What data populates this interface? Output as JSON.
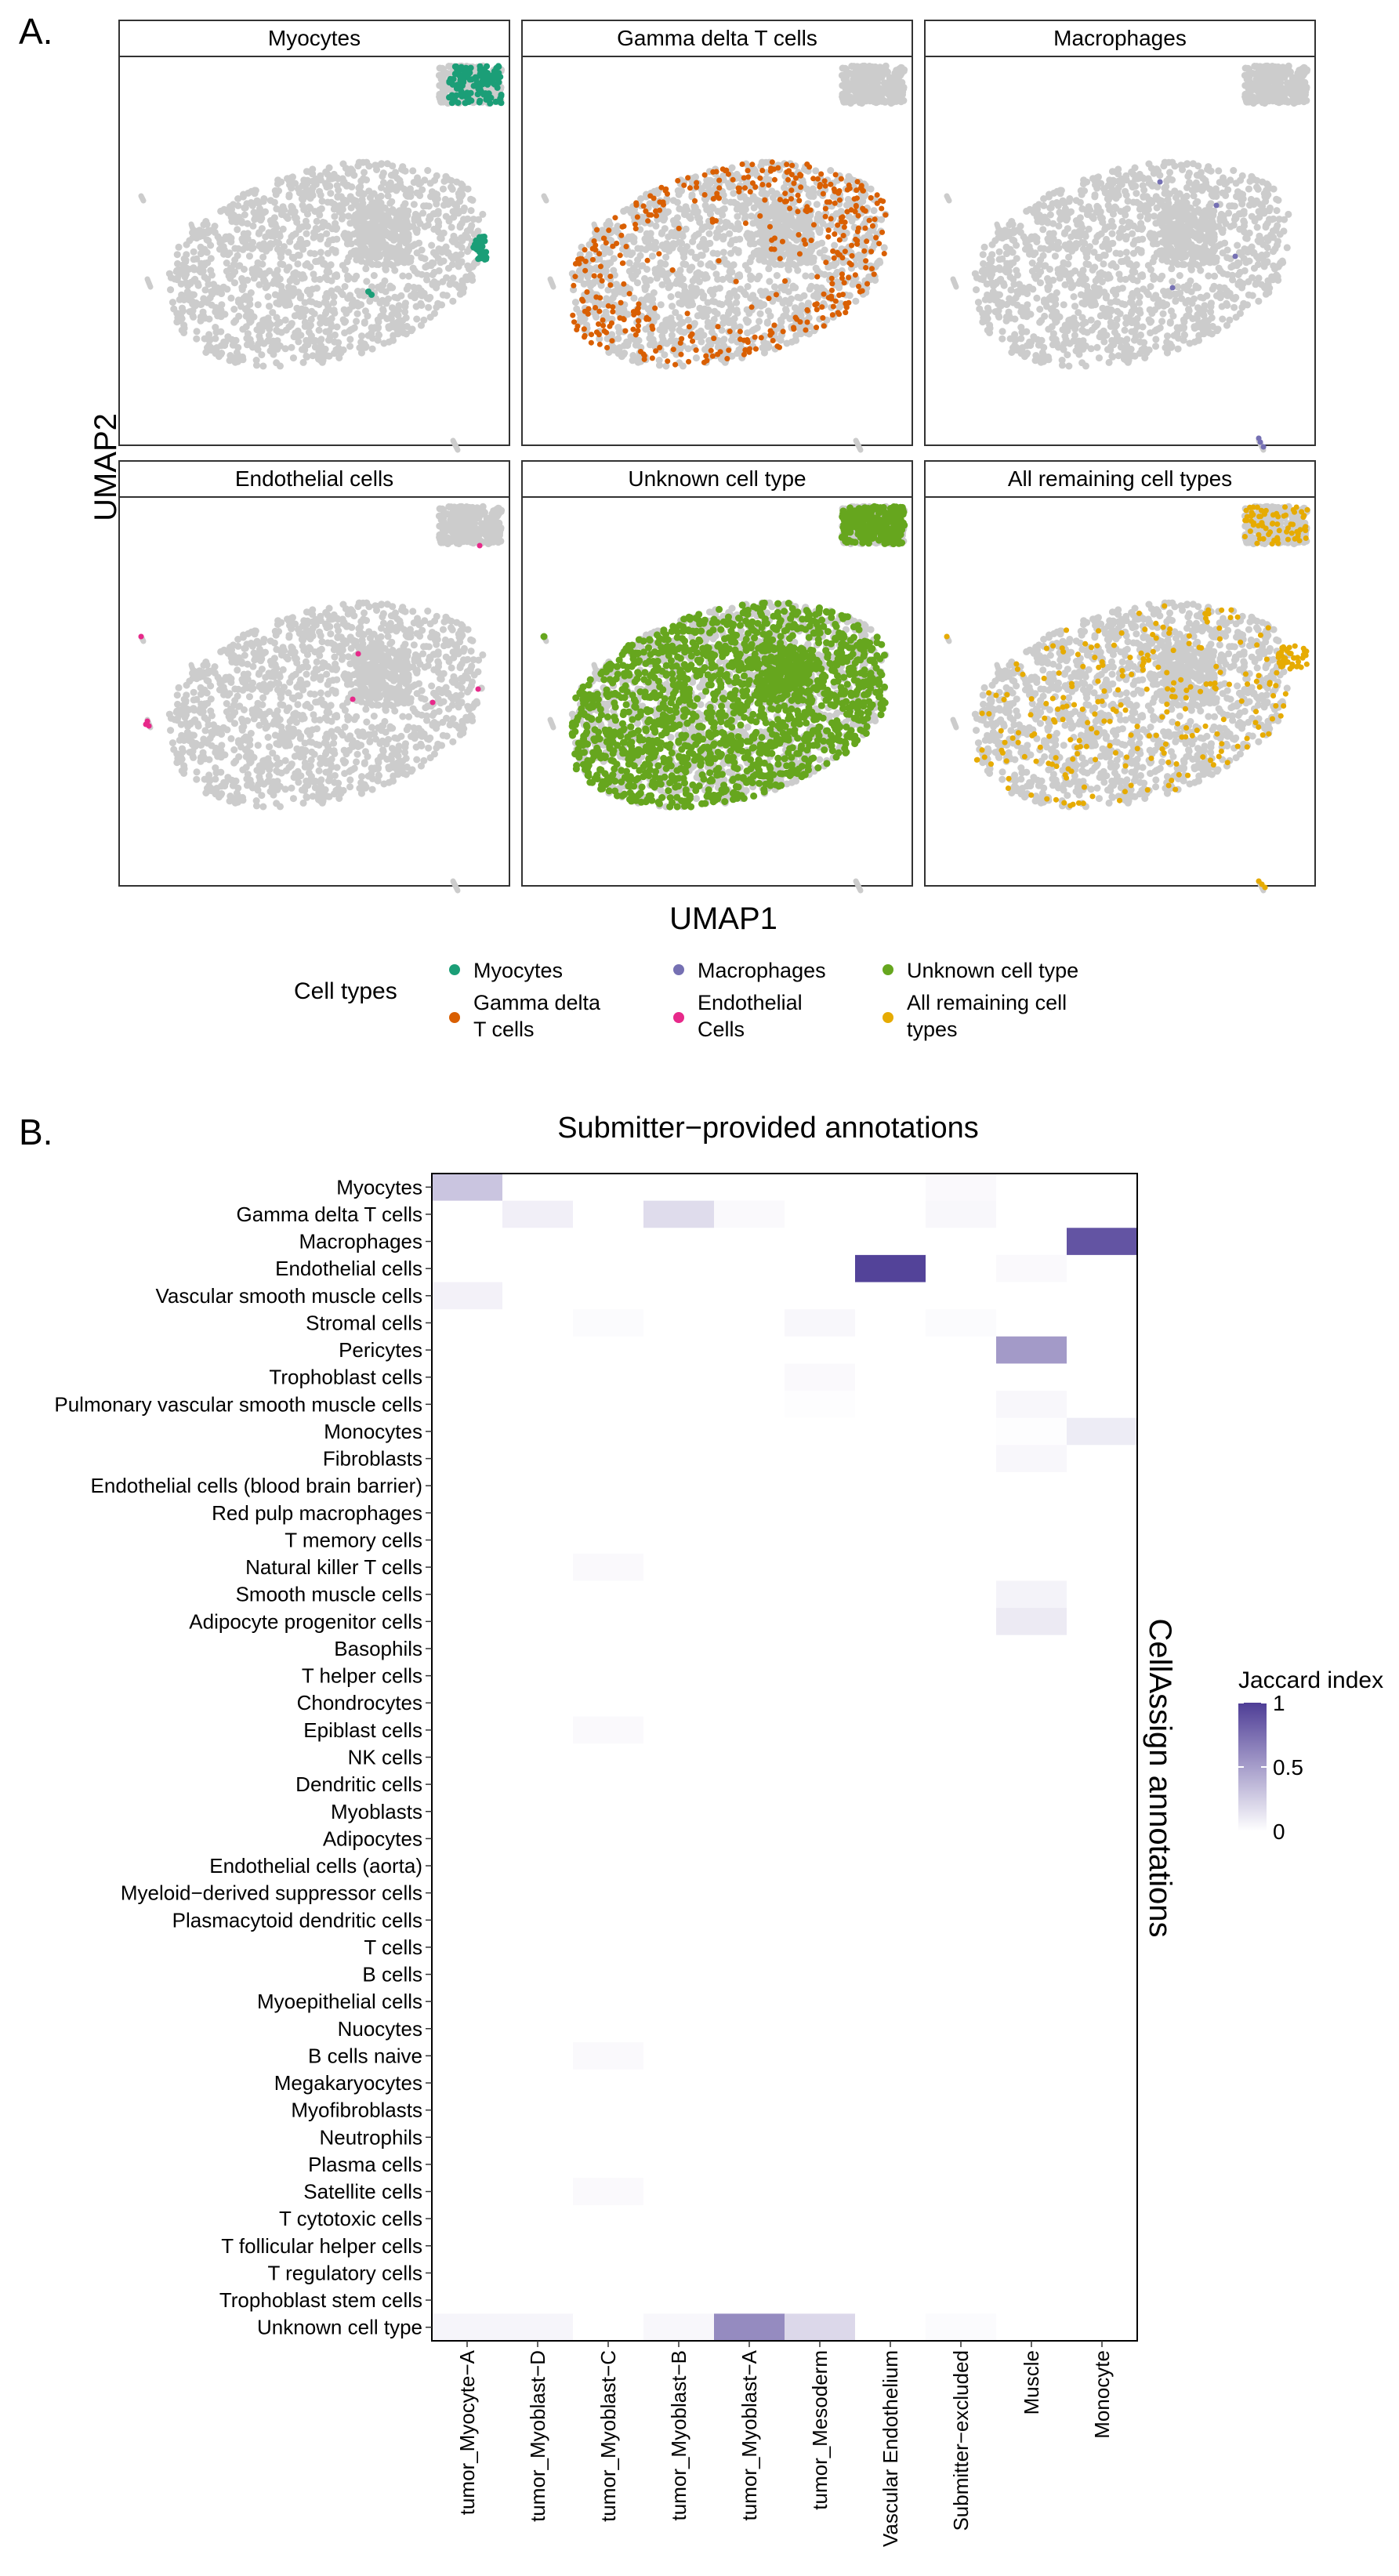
{
  "panel_a": {
    "label": "A.",
    "xlabel": "UMAP1",
    "ylabel": "UMAP2",
    "facets": [
      {
        "title": "Myocytes",
        "color": "#1b9e77",
        "highlight": "myocytes"
      },
      {
        "title": "Gamma delta T cells",
        "color": "#d95f02",
        "highlight": "gamma"
      },
      {
        "title": "Macrophages",
        "color": "#7570b3",
        "highlight": "macro"
      },
      {
        "title": "Endothelial cells",
        "color": "#e7298a",
        "highlight": "endo"
      },
      {
        "title": "Unknown cell type",
        "color": "#66a61e",
        "highlight": "unknown"
      },
      {
        "title": "All remaining cell types",
        "color": "#e6ab02",
        "highlight": "remaining"
      }
    ],
    "legend": {
      "title": "Cell types",
      "items": [
        {
          "label": "Myocytes",
          "color": "#1b9e77"
        },
        {
          "label": "Macrophages",
          "color": "#7570b3"
        },
        {
          "label": "Unknown cell type",
          "color": "#66a61e"
        },
        {
          "label": "Gamma delta T cells",
          "line1": "Gamma delta",
          "line2": "T cells",
          "color": "#d95f02"
        },
        {
          "label": "Endothelial Cells",
          "line1": "Endothelial",
          "line2": "Cells",
          "color": "#e7298a"
        },
        {
          "label": "All remaining cell types",
          "line1": "All remaining cell",
          "line2": "types",
          "color": "#e6ab02"
        }
      ]
    }
  },
  "chart_data": {
    "type": "heatmap",
    "panel_label": "B.",
    "title": "Submitter−provided annotations",
    "ylabel": "CellAssign annotations",
    "colorbar": {
      "title": "Jaccard index",
      "ticks": [
        "0",
        "0.5",
        "1"
      ],
      "low": "#ffffff",
      "high": "#4e3d96"
    },
    "columns": [
      "tumor_Myocyte−A",
      "tumor_Myoblast−D",
      "tumor_Myoblast−C",
      "tumor_Myoblast−B",
      "tumor_Myoblast−A",
      "tumor_Mesoderm",
      "Vascular Endothelium",
      "Submitter−excluded",
      "Muscle",
      "Monocyte"
    ],
    "rows": [
      "Myocytes",
      "Gamma delta T cells",
      "Macrophages",
      "Endothelial cells",
      "Vascular smooth muscle cells",
      "Stromal cells",
      "Pericytes",
      "Trophoblast cells",
      "Pulmonary vascular smooth muscle cells",
      "Monocytes",
      "Fibroblasts",
      "Endothelial cells (blood brain barrier)",
      "Red pulp macrophages",
      "T memory cells",
      "Natural killer T cells",
      "Smooth muscle cells",
      "Adipocyte progenitor cells",
      "Basophils",
      "T helper cells",
      "Chondrocytes",
      "Epiblast cells",
      "NK cells",
      "Dendritic cells",
      "Myoblasts",
      "Adipocytes",
      "Endothelial cells (aorta)",
      "Myeloid−derived suppressor cells",
      "Plasmacytoid dendritic cells",
      "T cells",
      "B cells",
      "Myoepithelial cells",
      "Nuocytes",
      "B cells naive",
      "Megakaryocytes",
      "Myofibroblasts",
      "Neutrophils",
      "Plasma cells",
      "Satellite cells",
      "T cytotoxic cells",
      "T follicular helper cells",
      "T regulatory cells",
      "Trophoblast stem cells",
      "Unknown cell type"
    ],
    "values": [
      [
        0.3,
        0,
        0,
        0,
        0,
        0,
        0,
        0.03,
        0,
        0
      ],
      [
        0,
        0.08,
        0,
        0.18,
        0.03,
        0,
        0,
        0.04,
        0,
        0
      ],
      [
        0,
        0,
        0,
        0,
        0,
        0,
        0,
        0,
        0,
        0.88
      ],
      [
        0,
        0,
        0,
        0,
        0,
        0,
        0.97,
        0,
        0.03,
        0
      ],
      [
        0.07,
        0,
        0,
        0,
        0,
        0,
        0,
        0,
        0,
        0
      ],
      [
        0,
        0,
        0.02,
        0,
        0,
        0.04,
        0,
        0.02,
        0,
        0
      ],
      [
        0,
        0,
        0,
        0,
        0,
        0,
        0,
        0,
        0.52,
        0
      ],
      [
        0,
        0,
        0,
        0,
        0,
        0.03,
        0,
        0,
        0,
        0
      ],
      [
        0,
        0,
        0,
        0,
        0,
        0.01,
        0,
        0,
        0.04,
        0
      ],
      [
        0,
        0,
        0,
        0,
        0,
        0,
        0,
        0,
        0.01,
        0.1
      ],
      [
        0,
        0,
        0,
        0,
        0,
        0,
        0,
        0,
        0.04,
        0
      ],
      [
        0,
        0,
        0,
        0,
        0,
        0,
        0,
        0,
        0,
        0
      ],
      [
        0,
        0,
        0,
        0,
        0,
        0,
        0,
        0,
        0,
        0
      ],
      [
        0,
        0,
        0,
        0,
        0,
        0,
        0,
        0,
        0,
        0
      ],
      [
        0,
        0,
        0.03,
        0,
        0,
        0,
        0,
        0,
        0,
        0
      ],
      [
        0,
        0,
        0,
        0,
        0,
        0,
        0,
        0,
        0.06,
        0
      ],
      [
        0,
        0,
        0,
        0,
        0,
        0,
        0,
        0,
        0.11,
        0
      ],
      [
        0,
        0,
        0,
        0,
        0,
        0,
        0,
        0,
        0,
        0
      ],
      [
        0,
        0,
        0,
        0,
        0,
        0,
        0,
        0,
        0,
        0
      ],
      [
        0,
        0,
        0,
        0,
        0,
        0,
        0,
        0,
        0,
        0
      ],
      [
        0,
        0,
        0.03,
        0,
        0,
        0,
        0,
        0,
        0,
        0
      ],
      [
        0,
        0,
        0,
        0,
        0,
        0,
        0,
        0,
        0,
        0
      ],
      [
        0,
        0,
        0,
        0,
        0,
        0,
        0,
        0,
        0,
        0
      ],
      [
        0,
        0,
        0,
        0,
        0,
        0,
        0,
        0,
        0,
        0
      ],
      [
        0,
        0,
        0,
        0,
        0,
        0,
        0,
        0,
        0,
        0
      ],
      [
        0,
        0,
        0,
        0,
        0,
        0,
        0,
        0,
        0,
        0
      ],
      [
        0,
        0,
        0,
        0,
        0,
        0,
        0,
        0,
        0,
        0
      ],
      [
        0,
        0,
        0,
        0,
        0,
        0,
        0,
        0,
        0,
        0
      ],
      [
        0,
        0,
        0,
        0,
        0,
        0,
        0,
        0,
        0,
        0
      ],
      [
        0,
        0,
        0,
        0,
        0,
        0,
        0,
        0,
        0,
        0
      ],
      [
        0,
        0,
        0,
        0,
        0,
        0,
        0,
        0,
        0,
        0
      ],
      [
        0,
        0,
        0,
        0,
        0,
        0,
        0,
        0,
        0,
        0
      ],
      [
        0,
        0,
        0.03,
        0,
        0,
        0,
        0,
        0,
        0,
        0
      ],
      [
        0,
        0,
        0,
        0,
        0,
        0,
        0,
        0,
        0,
        0
      ],
      [
        0,
        0,
        0,
        0,
        0,
        0,
        0,
        0,
        0,
        0
      ],
      [
        0,
        0,
        0,
        0,
        0,
        0,
        0,
        0,
        0,
        0
      ],
      [
        0,
        0,
        0,
        0,
        0,
        0,
        0,
        0,
        0,
        0
      ],
      [
        0,
        0,
        0.03,
        0,
        0,
        0,
        0,
        0,
        0,
        0
      ],
      [
        0,
        0,
        0,
        0,
        0,
        0,
        0,
        0,
        0,
        0
      ],
      [
        0,
        0,
        0,
        0,
        0,
        0,
        0,
        0,
        0,
        0
      ],
      [
        0,
        0,
        0,
        0,
        0,
        0,
        0,
        0,
        0,
        0
      ],
      [
        0,
        0,
        0,
        0,
        0,
        0,
        0,
        0,
        0,
        0
      ],
      [
        0.05,
        0.05,
        0,
        0.04,
        0.6,
        0.2,
        0,
        0.02,
        0,
        0
      ]
    ]
  }
}
